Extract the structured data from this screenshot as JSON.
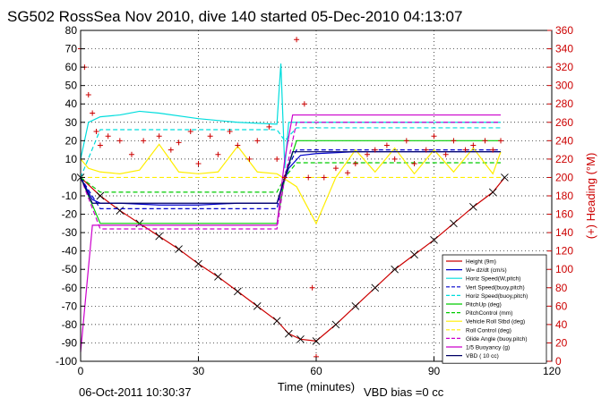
{
  "title": "SG502 RossSea Nov 2010, dive 140 started 05-Dec-2010 04:13:07",
  "footer": {
    "timestamp": "06-Oct-2011 10:30:37",
    "vbd_bias": "VBD bias =0 cc"
  },
  "colors": {
    "axis": "#000000",
    "right_axis": "#cc0000",
    "grid": "#000000",
    "legend_bg": "#ffffff"
  },
  "chart_data": {
    "type": "line",
    "xlabel": "Time (minutes)",
    "ylabel_right": "(+) Heading (°M)",
    "xlim": [
      0,
      120
    ],
    "ylim": [
      -100,
      80
    ],
    "ylim_right": [
      0,
      360
    ],
    "x_ticks": [
      0,
      30,
      60,
      90,
      120
    ],
    "y_ticks": [
      -100,
      -90,
      -80,
      -70,
      -60,
      -50,
      -40,
      -30,
      -20,
      -10,
      0,
      10,
      20,
      30,
      40,
      50,
      60,
      70,
      80
    ],
    "y_right_ticks": [
      0,
      20,
      40,
      60,
      80,
      100,
      120,
      140,
      160,
      180,
      200,
      220,
      240,
      260,
      280,
      300,
      320,
      340,
      360
    ],
    "grid": true,
    "legend_placement": "bottom-right",
    "series": [
      {
        "name": "Height (9m)",
        "color": "#cc0000",
        "style": "solid",
        "x": [
          0,
          5,
          10,
          15,
          20,
          25,
          30,
          35,
          40,
          45,
          50,
          53,
          56,
          60,
          65,
          70,
          75,
          80,
          85,
          90,
          95,
          100,
          105,
          108
        ],
        "y": [
          0,
          -10,
          -18,
          -25,
          -32,
          -39,
          -47,
          -54,
          -62,
          -70,
          -78,
          -85,
          -88,
          -89,
          -80,
          -70,
          -60,
          -50,
          -42,
          -34,
          -25,
          -16,
          -8,
          0
        ]
      },
      {
        "name": "W= dz/dt (cm/s)",
        "color": "#0000cc",
        "style": "solid",
        "x": [
          0,
          3,
          5,
          10,
          20,
          30,
          40,
          50,
          51,
          53,
          56,
          60,
          70,
          80,
          90,
          100,
          105,
          107
        ],
        "y": [
          0,
          -12,
          -14,
          -14,
          -15,
          -15,
          -14,
          -14,
          -8,
          5,
          12,
          13,
          14,
          14,
          14,
          14,
          14,
          14
        ]
      },
      {
        "name": "Horiz Speed(W,pitch)",
        "color": "#00dddd",
        "style": "solid",
        "x": [
          0,
          2,
          5,
          10,
          15,
          20,
          30,
          40,
          50,
          51,
          52,
          53,
          56,
          60,
          70,
          80,
          90,
          100,
          105,
          107
        ],
        "y": [
          10,
          30,
          33,
          34,
          36,
          35,
          32,
          30,
          29,
          62,
          5,
          30,
          30,
          30,
          30,
          30,
          30,
          30,
          30,
          30
        ]
      },
      {
        "name": "Vert Speed(buoy,pitch)",
        "color": "#0000cc",
        "style": "dashed",
        "x": [
          0,
          5,
          50,
          52,
          55,
          107
        ],
        "y": [
          0,
          -17,
          -17,
          2,
          15,
          15
        ]
      },
      {
        "name": "Horiz Speed(buoy,pitch)",
        "color": "#00dddd",
        "style": "dashed",
        "x": [
          0,
          5,
          50,
          52,
          55,
          107
        ],
        "y": [
          0,
          26,
          26,
          20,
          27,
          27
        ]
      },
      {
        "name": "PitchUp (deg)",
        "color": "#00cc00",
        "style": "solid",
        "x": [
          0,
          5,
          50,
          52,
          55,
          107
        ],
        "y": [
          0,
          -25,
          -25,
          0,
          20,
          20
        ]
      },
      {
        "name": "PitchControl (mm)",
        "color": "#00cc00",
        "style": "dashed",
        "x": [
          0,
          5,
          50,
          52,
          55,
          107
        ],
        "y": [
          0,
          -8,
          -8,
          0,
          8,
          8
        ]
      },
      {
        "name": "Vehicle Roll Stbd (deg)",
        "color": "#ffee00",
        "style": "solid",
        "x": [
          0,
          2,
          5,
          10,
          15,
          20,
          25,
          30,
          35,
          40,
          45,
          50,
          55,
          60,
          65,
          70,
          75,
          80,
          85,
          90,
          95,
          100,
          105,
          107
        ],
        "y": [
          10,
          5,
          3,
          2,
          4,
          18,
          3,
          2,
          3,
          17,
          3,
          2,
          -5,
          -25,
          0,
          15,
          3,
          16,
          2,
          15,
          3,
          16,
          2,
          14
        ]
      },
      {
        "name": "Roll Control (deg)",
        "color": "#ffee00",
        "style": "dashed",
        "x": [
          0,
          50,
          52,
          107
        ],
        "y": [
          0,
          0,
          0,
          0
        ]
      },
      {
        "name": "Glide Angle (buoy,pitch)",
        "color": "#cc00cc",
        "style": "dashed",
        "x": [
          0,
          5,
          50,
          52,
          55,
          107
        ],
        "y": [
          0,
          -28,
          -28,
          0,
          30,
          30
        ]
      },
      {
        "name": "1/5 Buoyancy (g)",
        "color": "#cc00cc",
        "style": "solid",
        "x": [
          0,
          3,
          50,
          52,
          54,
          107
        ],
        "y": [
          -95,
          -26,
          -26,
          10,
          34,
          34
        ]
      },
      {
        "name": "VBD ( 10 cc)",
        "color": "#000066",
        "style": "solid",
        "x": [
          0,
          3,
          50,
          52,
          54,
          107
        ],
        "y": [
          0,
          -14,
          -14,
          0,
          14,
          14
        ]
      }
    ],
    "heading_series": {
      "name": "(+) Heading (°M)",
      "color": "#cc0000",
      "x": [
        0,
        1,
        2,
        3,
        4,
        5,
        7,
        10,
        13,
        16,
        20,
        23,
        25,
        28,
        30,
        33,
        35,
        38,
        40,
        43,
        45,
        48,
        50,
        52,
        55,
        57,
        58,
        59,
        60,
        62,
        65,
        68,
        70,
        73,
        75,
        78,
        80,
        83,
        85,
        88,
        90,
        93,
        95,
        98,
        100,
        103,
        105,
        107
      ],
      "y": [
        340,
        320,
        290,
        270,
        250,
        235,
        245,
        240,
        225,
        240,
        245,
        230,
        238,
        250,
        215,
        245,
        225,
        250,
        235,
        220,
        240,
        255,
        220,
        200,
        350,
        280,
        200,
        80,
        5,
        200,
        210,
        205,
        215,
        225,
        230,
        235,
        220,
        240,
        215,
        230,
        245,
        225,
        240,
        230,
        235,
        240,
        230,
        240
      ]
    }
  }
}
